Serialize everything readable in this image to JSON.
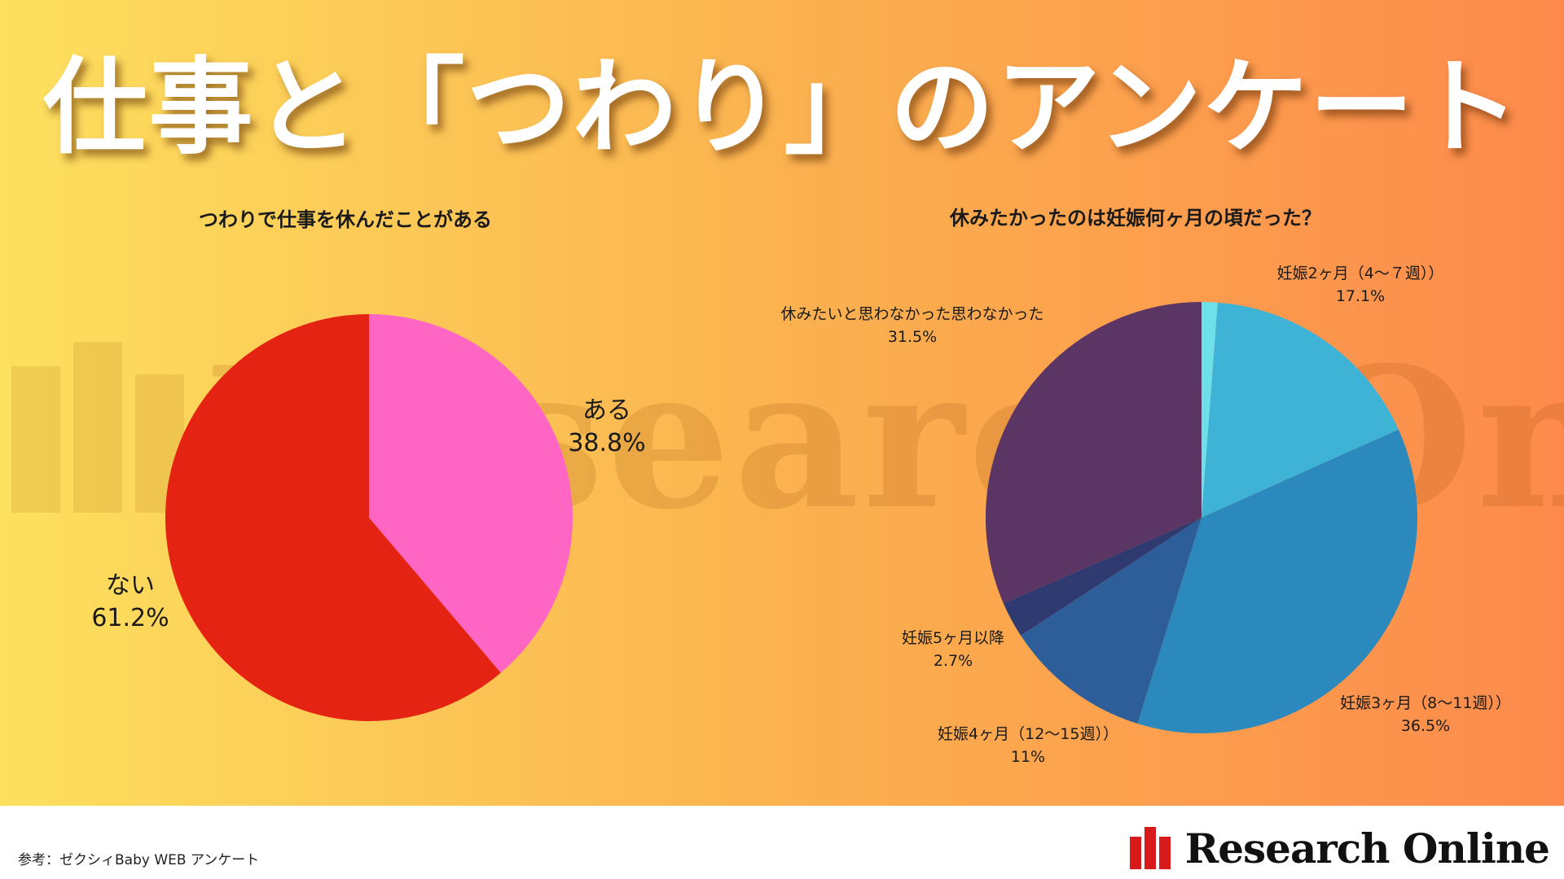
{
  "main_title": "仕事と「つわり」のアンケート",
  "watermark_text": "Research Online",
  "footer": {
    "source": "参考：ゼクシィBaby WEB アンケート",
    "logo_text": "Research Online"
  },
  "colors": {
    "gradient_left": "#fde05e",
    "gradient_right": "#fd8a4c",
    "logo_red": "#d91a1a"
  },
  "chart_data": [
    {
      "type": "pie",
      "title": "つわりで仕事を休んだことがある",
      "slices": [
        {
          "label": "ある",
          "value": 38.8,
          "value_label": "38.8%",
          "color": "#ff66c4"
        },
        {
          "label": "ない",
          "value": 61.2,
          "value_label": "61.2%",
          "color": "#e42313"
        }
      ]
    },
    {
      "type": "pie",
      "title": "休みたかったのは妊娠何ヶ月の頃だった？",
      "slices": [
        {
          "label": "",
          "value": 1.2,
          "value_label": "",
          "color": "#6ee0ea"
        },
        {
          "label": "妊娠2ヶ月（4〜７週））",
          "value": 17.1,
          "value_label": "17.1%",
          "color": "#3fb3d6"
        },
        {
          "label": "妊娠3ヶ月（8〜11週））",
          "value": 36.5,
          "value_label": "36.5%",
          "color": "#2b89bd"
        },
        {
          "label": "妊娠4ヶ月（12〜15週））",
          "value": 11,
          "value_label": "11%",
          "color": "#2e5e99"
        },
        {
          "label": "妊娠5ヶ月以降",
          "value": 2.7,
          "value_label": "2.7%",
          "color": "#2e3a70"
        },
        {
          "label": "休みたいと思わなかった思わなかった",
          "value": 31.5,
          "value_label": "31.5%",
          "color": "#5b3665"
        }
      ]
    }
  ]
}
